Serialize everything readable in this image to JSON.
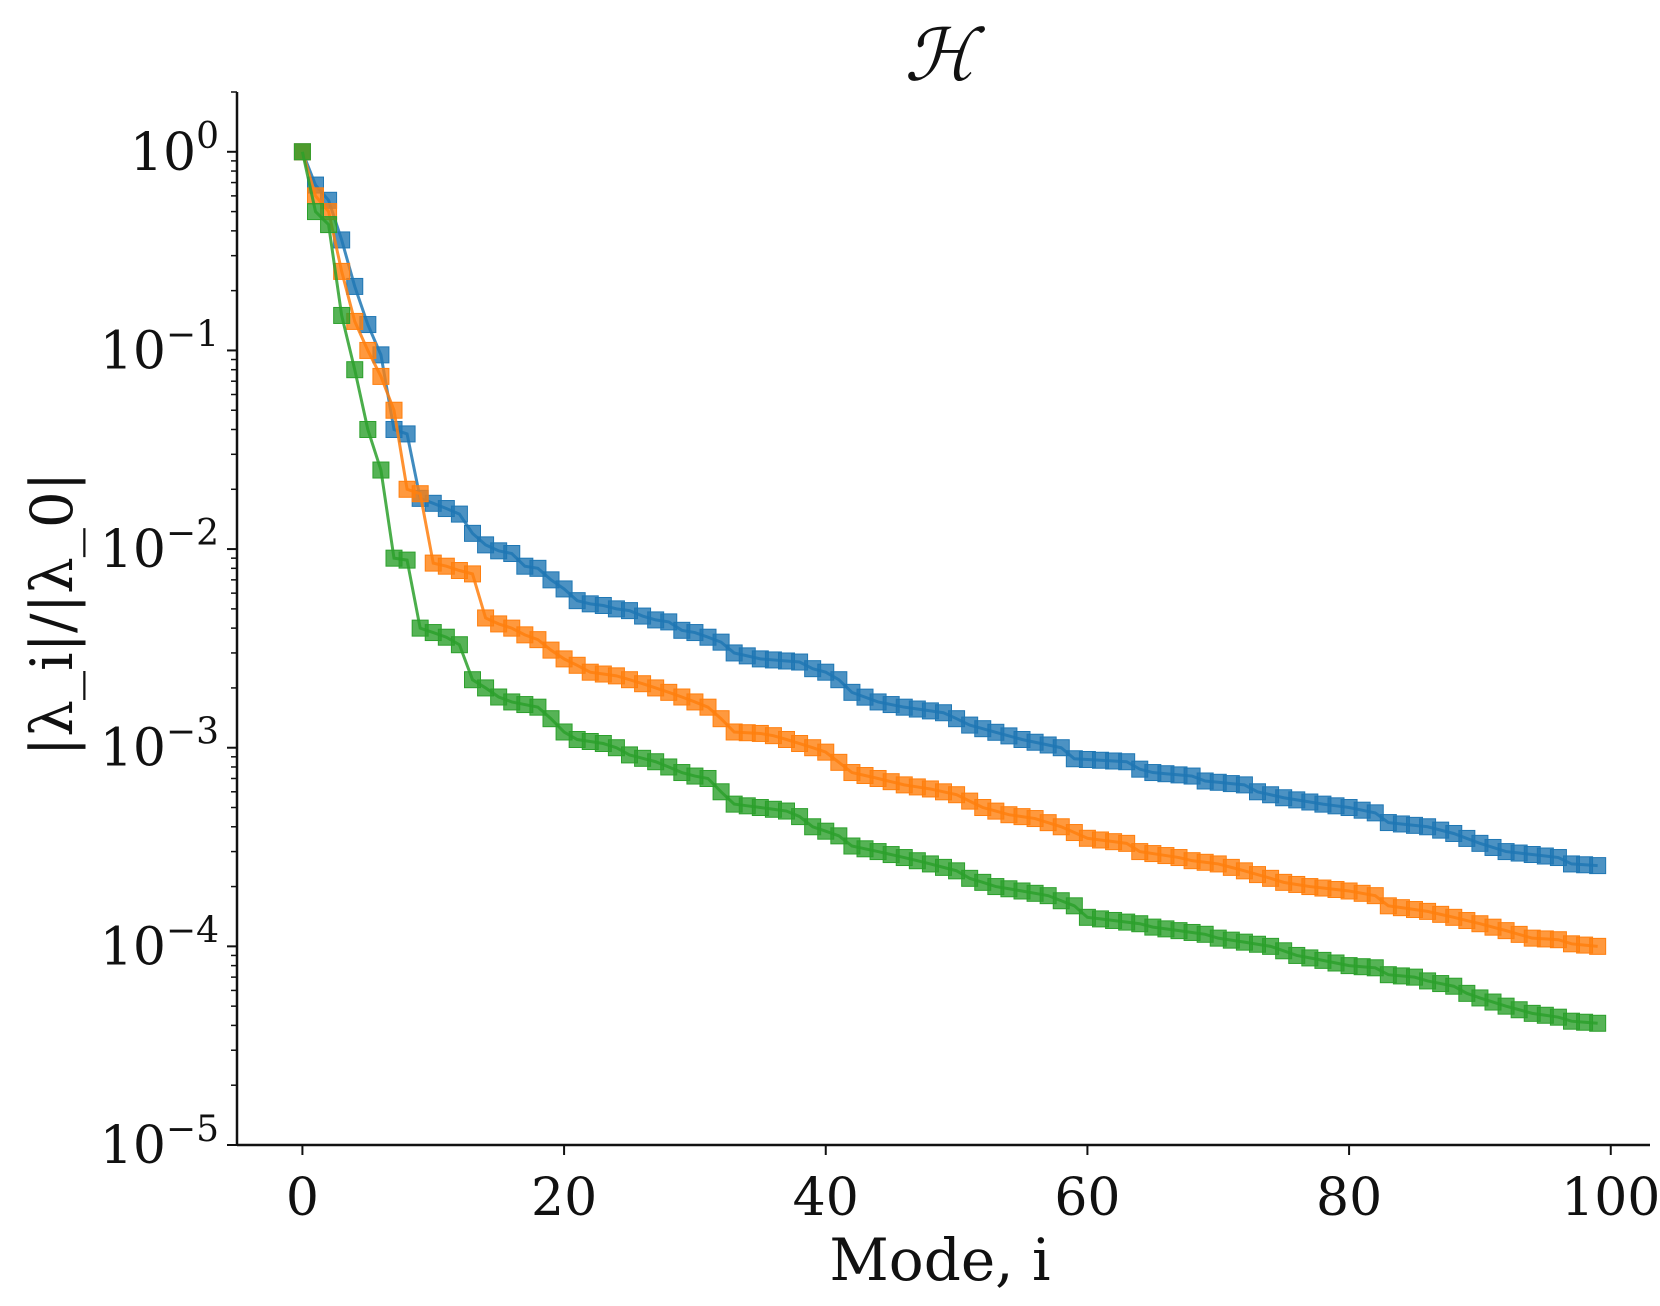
{
  "chart_data": {
    "type": "line",
    "title": "ℋ",
    "xlabel": "Mode, i",
    "ylabel": "|λ_i|/|λ_0|",
    "yscale": "log",
    "xlim": [
      -5,
      103
    ],
    "ylim": [
      1e-05,
      2.0
    ],
    "xticks": [
      0,
      20,
      40,
      60,
      80,
      100
    ],
    "xtick_labels": [
      "0",
      "20",
      "40",
      "60",
      "80",
      "100"
    ],
    "yticks": [
      1,
      0.1,
      0.01,
      0.001,
      0.0001,
      1e-05
    ],
    "ytick_labels": [
      {
        "base": "10",
        "exp": "0"
      },
      {
        "base": "10",
        "exp": "−1"
      },
      {
        "base": "10",
        "exp": "−2"
      },
      {
        "base": "10",
        "exp": "−3"
      },
      {
        "base": "10",
        "exp": "−4"
      },
      {
        "base": "10",
        "exp": "−5"
      }
    ],
    "grid": false,
    "legend": "none",
    "marker": "square",
    "series": [
      {
        "color": "#1f77b4",
        "anchors": [
          [
            0,
            1.0
          ],
          [
            1,
            0.68
          ],
          [
            2,
            0.57
          ],
          [
            3,
            0.36
          ],
          [
            4,
            0.21
          ],
          [
            5,
            0.135
          ],
          [
            6,
            0.095
          ],
          [
            7,
            0.04
          ],
          [
            8,
            0.038
          ],
          [
            9,
            0.018
          ],
          [
            10,
            0.017
          ],
          [
            11,
            0.016
          ],
          [
            12,
            0.015
          ],
          [
            13,
            0.012
          ],
          [
            14,
            0.0105
          ],
          [
            15,
            0.0098
          ],
          [
            16,
            0.0095
          ],
          [
            17,
            0.0082
          ],
          [
            18,
            0.008
          ],
          [
            19,
            0.007
          ],
          [
            20,
            0.0063
          ],
          [
            21,
            0.0055
          ],
          [
            22,
            0.0053
          ],
          [
            23,
            0.0052
          ],
          [
            24,
            0.005
          ],
          [
            25,
            0.0049
          ],
          [
            26,
            0.0046
          ],
          [
            27,
            0.0044
          ],
          [
            28,
            0.0043
          ],
          [
            29,
            0.0039
          ],
          [
            30,
            0.0038
          ],
          [
            31,
            0.0036
          ],
          [
            32,
            0.0034
          ],
          [
            33,
            0.003
          ],
          [
            34,
            0.0029
          ],
          [
            35,
            0.0028
          ],
          [
            38,
            0.0027
          ],
          [
            39,
            0.0025
          ],
          [
            40,
            0.0024
          ],
          [
            41,
            0.0022
          ],
          [
            42,
            0.0019
          ],
          [
            44,
            0.0017
          ],
          [
            46,
            0.0016
          ],
          [
            49,
            0.0015
          ],
          [
            50,
            0.0014
          ],
          [
            51,
            0.0013
          ],
          [
            55,
            0.0011
          ],
          [
            58,
            0.001
          ],
          [
            59,
            0.00088
          ],
          [
            63,
            0.00085
          ],
          [
            64,
            0.00078
          ],
          [
            65,
            0.00075
          ],
          [
            68,
            0.00072
          ],
          [
            69,
            0.00068
          ],
          [
            72,
            0.00065
          ],
          [
            73,
            0.0006
          ],
          [
            75,
            0.00056
          ],
          [
            78,
            0.00052
          ],
          [
            80,
            0.0005
          ],
          [
            82,
            0.00047
          ],
          [
            83,
            0.00042
          ],
          [
            86,
            0.0004
          ],
          [
            88,
            0.00037
          ],
          [
            90,
            0.00033
          ],
          [
            92,
            0.0003
          ],
          [
            94,
            0.00029
          ],
          [
            96,
            0.00028
          ],
          [
            97,
            0.00026
          ],
          [
            99,
            0.000255
          ]
        ]
      },
      {
        "color": "#ff7f0e",
        "anchors": [
          [
            0,
            1.0
          ],
          [
            1,
            0.6
          ],
          [
            2,
            0.5
          ],
          [
            3,
            0.25
          ],
          [
            4,
            0.14
          ],
          [
            5,
            0.1
          ],
          [
            6,
            0.074
          ],
          [
            7,
            0.05
          ],
          [
            8,
            0.02
          ],
          [
            9,
            0.019
          ],
          [
            10,
            0.0085
          ],
          [
            11,
            0.0082
          ],
          [
            12,
            0.0078
          ],
          [
            13,
            0.0075
          ],
          [
            14,
            0.0045
          ],
          [
            15,
            0.0042
          ],
          [
            16,
            0.004
          ],
          [
            17,
            0.0037
          ],
          [
            18,
            0.0035
          ],
          [
            19,
            0.0031
          ],
          [
            20,
            0.0028
          ],
          [
            21,
            0.0026
          ],
          [
            22,
            0.0024
          ],
          [
            24,
            0.0023
          ],
          [
            25,
            0.0022
          ],
          [
            26,
            0.0021
          ],
          [
            27,
            0.002
          ],
          [
            28,
            0.0019
          ],
          [
            29,
            0.0018
          ],
          [
            30,
            0.0017
          ],
          [
            31,
            0.0016
          ],
          [
            32,
            0.0014
          ],
          [
            33,
            0.0012
          ],
          [
            35,
            0.00118
          ],
          [
            36,
            0.00115
          ],
          [
            37,
            0.0011
          ],
          [
            38,
            0.00105
          ],
          [
            39,
            0.001
          ],
          [
            40,
            0.00095
          ],
          [
            42,
            0.00075
          ],
          [
            44,
            0.0007
          ],
          [
            46,
            0.00065
          ],
          [
            48,
            0.00062
          ],
          [
            50,
            0.00058
          ],
          [
            52,
            0.0005
          ],
          [
            54,
            0.00046
          ],
          [
            56,
            0.00044
          ],
          [
            58,
            0.0004
          ],
          [
            60,
            0.00035
          ],
          [
            63,
            0.00033
          ],
          [
            64,
            0.0003
          ],
          [
            67,
            0.00028
          ],
          [
            68,
            0.00027
          ],
          [
            70,
            0.00026
          ],
          [
            72,
            0.00024
          ],
          [
            74,
            0.00022
          ],
          [
            75,
            0.00021
          ],
          [
            77,
            0.0002
          ],
          [
            80,
            0.00019
          ],
          [
            82,
            0.00018
          ],
          [
            83,
            0.00016
          ],
          [
            86,
            0.00015
          ],
          [
            88,
            0.00014
          ],
          [
            90,
            0.00013
          ],
          [
            92,
            0.00012
          ],
          [
            94,
            0.00011
          ],
          [
            96,
            0.000108
          ],
          [
            97,
            0.000103
          ],
          [
            99,
            0.0001
          ]
        ]
      },
      {
        "color": "#2ca02c",
        "anchors": [
          [
            0,
            1.0
          ],
          [
            1,
            0.5
          ],
          [
            2,
            0.43
          ],
          [
            3,
            0.15
          ],
          [
            4,
            0.08
          ],
          [
            5,
            0.04
          ],
          [
            6,
            0.025
          ],
          [
            7,
            0.009
          ],
          [
            8,
            0.0088
          ],
          [
            9,
            0.004
          ],
          [
            10,
            0.0038
          ],
          [
            11,
            0.0036
          ],
          [
            12,
            0.0033
          ],
          [
            13,
            0.0022
          ],
          [
            14,
            0.002
          ],
          [
            15,
            0.0018
          ],
          [
            16,
            0.0017
          ],
          [
            18,
            0.0016
          ],
          [
            19,
            0.0014
          ],
          [
            20,
            0.0012
          ],
          [
            21,
            0.0011
          ],
          [
            23,
            0.00105
          ],
          [
            24,
            0.001
          ],
          [
            25,
            0.00092
          ],
          [
            27,
            0.00085
          ],
          [
            28,
            0.0008
          ],
          [
            29,
            0.00075
          ],
          [
            30,
            0.00072
          ],
          [
            31,
            0.0007
          ],
          [
            32,
            0.0006
          ],
          [
            33,
            0.00052
          ],
          [
            35,
            0.0005
          ],
          [
            37,
            0.00048
          ],
          [
            38,
            0.00045
          ],
          [
            39,
            0.0004
          ],
          [
            40,
            0.00038
          ],
          [
            41,
            0.00036
          ],
          [
            42,
            0.00032
          ],
          [
            44,
            0.0003
          ],
          [
            46,
            0.00028
          ],
          [
            48,
            0.00026
          ],
          [
            50,
            0.00024
          ],
          [
            51,
            0.00022
          ],
          [
            52,
            0.00021
          ],
          [
            53,
            0.0002
          ],
          [
            55,
            0.00019
          ],
          [
            57,
            0.00018
          ],
          [
            59,
            0.00016
          ],
          [
            60,
            0.00014
          ],
          [
            62,
            0.000135
          ],
          [
            64,
            0.00013
          ],
          [
            65,
            0.000125
          ],
          [
            67,
            0.00012
          ],
          [
            69,
            0.000115
          ],
          [
            70,
            0.00011
          ],
          [
            72,
            0.000105
          ],
          [
            74,
            0.0001
          ],
          [
            75,
            9.5e-05
          ],
          [
            76,
            9e-05
          ],
          [
            78,
            8.5e-05
          ],
          [
            80,
            8e-05
          ],
          [
            82,
            7.8e-05
          ],
          [
            83,
            7.2e-05
          ],
          [
            85,
            7e-05
          ],
          [
            86,
            6.7e-05
          ],
          [
            88,
            6.3e-05
          ],
          [
            89,
            5.8e-05
          ],
          [
            90,
            5.5e-05
          ],
          [
            92,
            5e-05
          ],
          [
            94,
            4.6e-05
          ],
          [
            96,
            4.4e-05
          ],
          [
            97,
            4.2e-05
          ],
          [
            99,
            4.1e-05
          ]
        ]
      }
    ]
  }
}
